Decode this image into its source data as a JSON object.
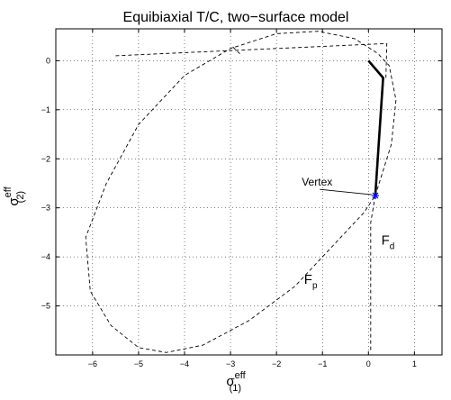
{
  "chart_data": {
    "type": "line",
    "title": "Equibiaxial T/C, two−surface model",
    "xlabel": {
      "main": "σ",
      "sup": "eff",
      "sub": "(1)"
    },
    "ylabel": {
      "main": "σ",
      "sup": "eff",
      "sub": "(2)"
    },
    "xlim": [
      -6.8,
      1.6
    ],
    "ylim": [
      -6.0,
      0.65
    ],
    "x_ticks": [
      -6,
      -5,
      -4,
      -3,
      -2,
      -1,
      0,
      1
    ],
    "y_ticks": [
      -5,
      -4,
      -3,
      -2,
      -1,
      0
    ],
    "x_tick_labels": [
      "−6",
      "−5",
      "−4",
      "−3",
      "−2",
      "−1",
      "0",
      "1"
    ],
    "y_tick_labels": [
      "−5",
      "−4",
      "−3",
      "−2",
      "−1",
      "0"
    ],
    "grid": true,
    "series": [
      {
        "id": "Fp",
        "style": "dashed",
        "points": [
          [
            0.15,
            -2.75
          ],
          [
            0.5,
            -1.7
          ],
          [
            0.6,
            -0.8
          ],
          [
            0.45,
            -0.1
          ],
          [
            0.2,
            0.15
          ],
          [
            -0.3,
            0.45
          ],
          [
            -1.1,
            0.6
          ],
          [
            -2.0,
            0.55
          ],
          [
            -3.0,
            0.25
          ],
          [
            -4.0,
            -0.3
          ],
          [
            -5.0,
            -1.3
          ],
          [
            -5.7,
            -2.5
          ],
          [
            -6.15,
            -3.6
          ],
          [
            -6.05,
            -4.7
          ],
          [
            -5.6,
            -5.4
          ],
          [
            -5.0,
            -5.85
          ],
          [
            -4.4,
            -5.95
          ],
          [
            -3.6,
            -5.8
          ],
          [
            -2.6,
            -5.3
          ],
          [
            -1.6,
            -4.6
          ],
          [
            -0.7,
            -3.7
          ],
          [
            -0.1,
            -3.1
          ],
          [
            0.15,
            -2.75
          ]
        ]
      },
      {
        "id": "Fd",
        "style": "dashed",
        "points": [
          [
            0.15,
            -2.75
          ],
          [
            0.05,
            -3.3
          ],
          [
            0.05,
            -5.3
          ],
          [
            0.05,
            -5.9
          ]
        ]
      },
      {
        "id": "Fd-top",
        "style": "dashed",
        "points": [
          [
            -5.5,
            0.1
          ],
          [
            0.4,
            0.35
          ],
          [
            0.38,
            -0.35
          ]
        ]
      },
      {
        "id": "Fd-top-left",
        "style": "dashed",
        "points": [
          [
            -2.95,
            0.28
          ],
          [
            -2.75,
            0.1
          ]
        ]
      },
      {
        "id": "stress-path",
        "style": "solid-thick",
        "points": [
          [
            0.0,
            0.0
          ],
          [
            0.32,
            -0.35
          ],
          [
            0.15,
            -2.75
          ]
        ]
      }
    ],
    "marker": {
      "id": "vertex",
      "x": 0.15,
      "y": -2.75,
      "color": "#0000ff"
    },
    "annotations": [
      {
        "id": "vertex-label",
        "text": "Vertex",
        "x": -1.45,
        "y": -2.55
      },
      {
        "id": "fd-label",
        "text": "F",
        "sub": "d",
        "x": 0.28,
        "y": -3.75
      },
      {
        "id": "fp-label",
        "text": "F",
        "sub": "p",
        "x": -1.4,
        "y": -4.55
      }
    ]
  }
}
